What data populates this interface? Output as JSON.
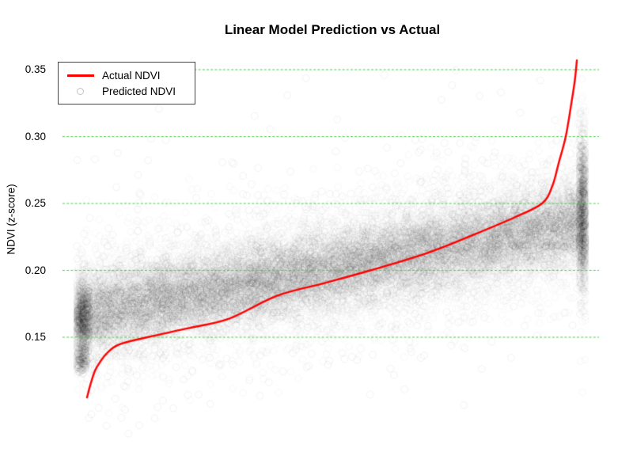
{
  "title": "Linear Model Prediction vs Actual",
  "y_axis": {
    "label": "NDVI (z-score)",
    "ticks": [
      {
        "label": "0.35",
        "value": 0.35
      },
      {
        "label": "0.30",
        "value": 0.3
      },
      {
        "label": "0.25",
        "value": 0.25
      },
      {
        "label": "0.20",
        "value": 0.2
      },
      {
        "label": "0.15",
        "value": 0.15
      }
    ]
  },
  "legend": {
    "position": "top-left",
    "items": [
      {
        "label": "Actual NDVI",
        "marker": "line",
        "color": "#ff0000"
      },
      {
        "label": "Predicted NDVI",
        "marker": "open-circle",
        "color": "#c4c4c4"
      }
    ]
  },
  "colors": {
    "actual_line": "#ff0000",
    "gridline": "#44d444",
    "scatter_ink": "#000000",
    "background": "#ffffff",
    "text": "#000000"
  },
  "chart_data": {
    "type": "scatter",
    "title": "Linear Model Prediction vs Actual",
    "xlabel": "",
    "ylabel": "NDVI (z-score)",
    "ylim": [
      0.1,
      0.36
    ],
    "yticks": [
      0.15,
      0.2,
      0.25,
      0.3,
      0.35
    ],
    "grid": {
      "horizontal": true,
      "values": [
        0.15,
        0.2,
        0.25,
        0.3,
        0.35
      ],
      "style": "dashed",
      "color": "#44d444"
    },
    "legend_position": "top-left",
    "series": [
      {
        "name": "Actual NDVI",
        "type": "line",
        "color": "#ff0000",
        "line_width": 2.4,
        "points_frac_value": [
          [
            0.0202,
            0.105
          ],
          [
            0.0264,
            0.114
          ],
          [
            0.0358,
            0.125
          ],
          [
            0.0467,
            0.132
          ],
          [
            0.0591,
            0.138
          ],
          [
            0.0824,
            0.1445
          ],
          [
            0.1384,
            0.15
          ],
          [
            0.2224,
            0.157
          ],
          [
            0.3001,
            0.164
          ],
          [
            0.3935,
            0.181
          ],
          [
            0.4868,
            0.1905
          ],
          [
            0.577,
            0.2
          ],
          [
            0.689,
            0.213
          ],
          [
            0.7823,
            0.227
          ],
          [
            0.86,
            0.2395
          ],
          [
            0.9145,
            0.25
          ],
          [
            0.9347,
            0.263
          ],
          [
            0.9471,
            0.28
          ],
          [
            0.9611,
            0.3
          ],
          [
            0.972,
            0.3245
          ],
          [
            0.979,
            0.342
          ],
          [
            0.983,
            0.357
          ]
        ]
      },
      {
        "name": "Predicted NDVI",
        "type": "scatter",
        "marker": "open-circle",
        "marker_radius": 4.2,
        "seed": 42,
        "distribution_summary": {
          "description": "dense translucent open-circle cloud; band center rises roughly linearly with sorted index",
          "band_center_start": 0.167,
          "band_center_end": 0.236,
          "groups": [
            {
              "n": 20000,
              "fmin": 0,
              "fmax": 1,
              "cs": 0.167,
              "ce": 0.236,
              "sd": 0.015,
              "sd2": 0.027,
              "sd2f": 0.22,
              "alpha": 0.032,
              "r": 4.2
            },
            {
              "n": 650,
              "fmin": 0,
              "fmax": 1,
              "cs": 0.167,
              "ce": 0.236,
              "sd": 0.048,
              "alpha": 0.05,
              "r": 4.4
            },
            {
              "n": 800,
              "fmin": 0,
              "fmax": 0.025,
              "cs": 0.165,
              "sd": 0.014,
              "alpha": 0.035,
              "r": 4.2
            },
            {
              "n": 200,
              "fmin": 0,
              "fmax": 0.02,
              "cs": 0.134,
              "sd": 0.005,
              "alpha": 0.04,
              "r": 4.2
            },
            {
              "n": 1100,
              "fmin": 0.988,
              "fmax": 1.0,
              "cs": 0.244,
              "sd": 0.033,
              "alpha": 0.035,
              "r": 4.2
            }
          ]
        }
      }
    ]
  }
}
